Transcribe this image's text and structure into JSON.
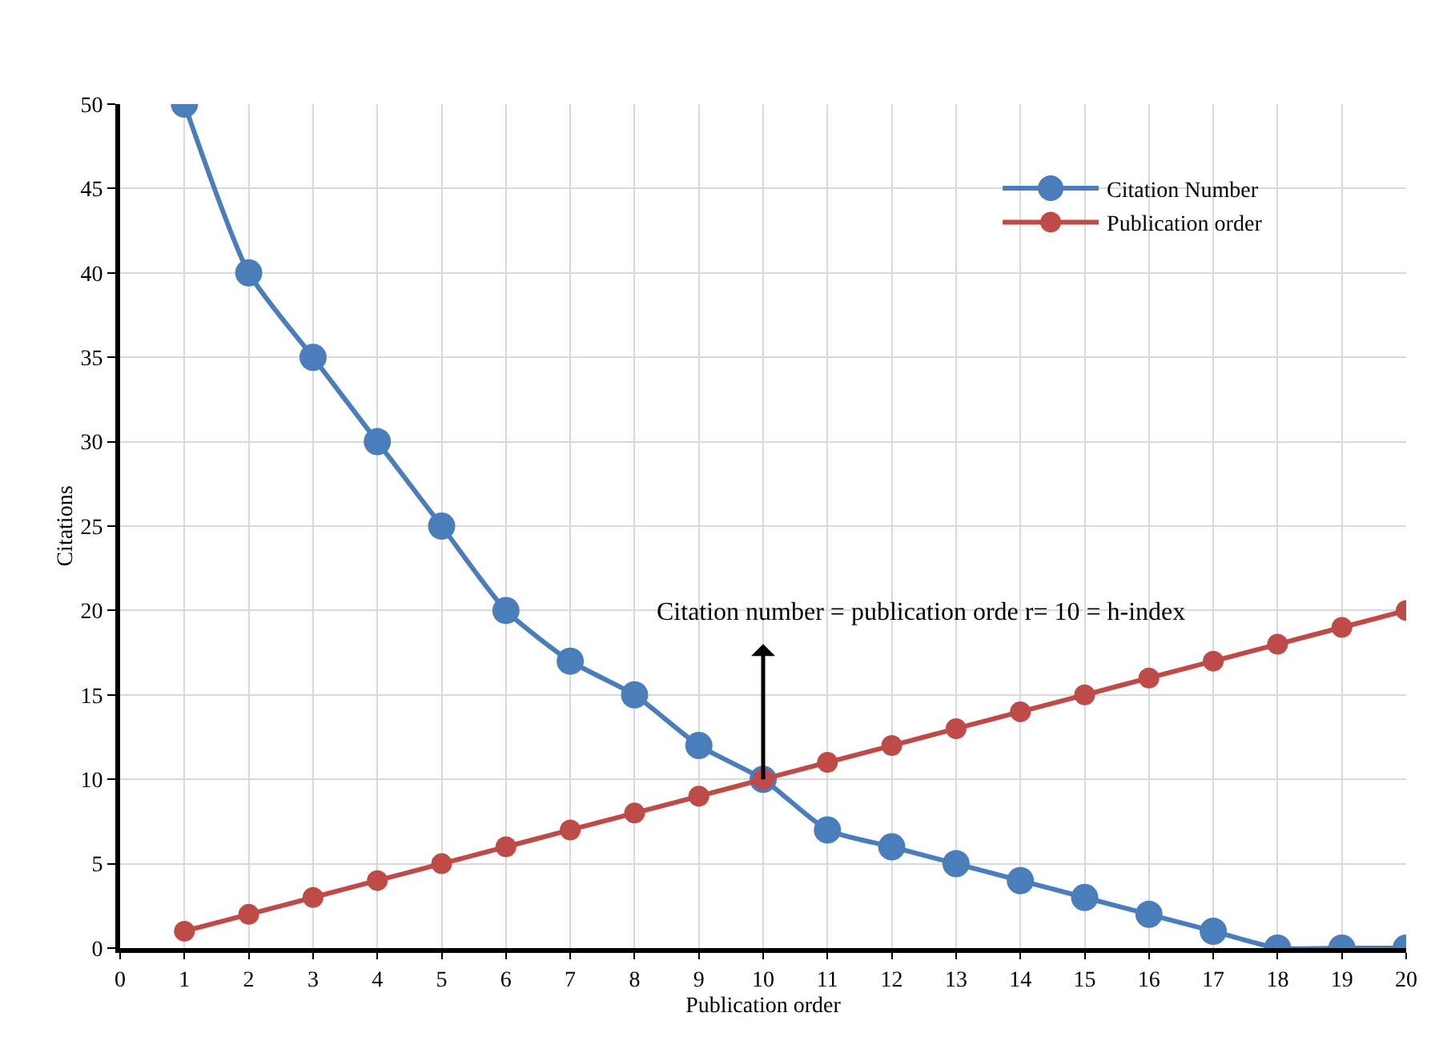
{
  "chart_data": {
    "type": "line",
    "xlabel": "Publication order",
    "ylabel": "Citations",
    "x": [
      1,
      2,
      3,
      4,
      5,
      6,
      7,
      8,
      9,
      10,
      11,
      12,
      13,
      14,
      15,
      16,
      17,
      18,
      19,
      20
    ],
    "series": [
      {
        "name": "Citation Number",
        "color": "#4a7ebb",
        "values": [
          50,
          40,
          35,
          30,
          25,
          20,
          17,
          15,
          12,
          10,
          7,
          6,
          5,
          4,
          3,
          2,
          1,
          0,
          0,
          0
        ]
      },
      {
        "name": "Publication order",
        "color": "#be4b48",
        "values": [
          1,
          2,
          3,
          4,
          5,
          6,
          7,
          8,
          9,
          10,
          11,
          12,
          13,
          14,
          15,
          16,
          17,
          18,
          19,
          20
        ]
      }
    ],
    "xlim": [
      0,
      20
    ],
    "xticks": [
      0,
      1,
      2,
      3,
      4,
      5,
      6,
      7,
      8,
      9,
      10,
      11,
      12,
      13,
      14,
      15,
      16,
      17,
      18,
      19,
      20
    ],
    "ylim": [
      0,
      50
    ],
    "yticks": [
      0,
      5,
      10,
      15,
      20,
      25,
      30,
      35,
      40,
      45,
      50
    ],
    "annotations": [
      {
        "text": "Citation number = publication orde r= 10 = h-index",
        "x": 10,
        "y": 10
      }
    ],
    "grid": true,
    "legend": "top right",
    "marker": "circle",
    "line_style": "solid"
  }
}
